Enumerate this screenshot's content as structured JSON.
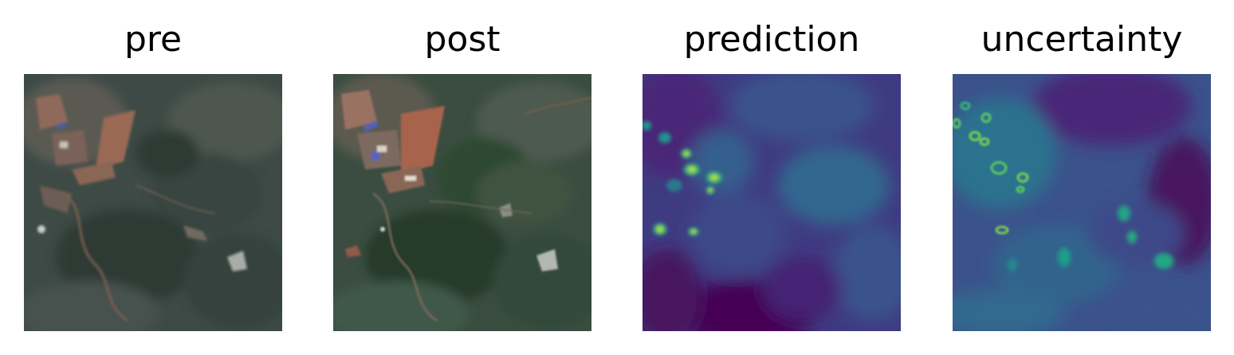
{
  "figure": {
    "panels": [
      {
        "title": "pre",
        "kind": "satellite-rgb",
        "palette": {
          "base": "#3d4a45",
          "dark": "#2c3833",
          "light": "#5a625c",
          "soil": "#9a6a55",
          "roof": "#4a5f9a",
          "bright": "#c8cfcf"
        }
      },
      {
        "title": "post",
        "kind": "satellite-rgb",
        "palette": {
          "base": "#3a4d40",
          "dark": "#243628",
          "light": "#5d6a5e",
          "soil": "#a8644e",
          "roof": "#5062b8",
          "bright": "#d2d6d4"
        }
      },
      {
        "title": "prediction",
        "kind": "heatmap",
        "colormap": "viridis",
        "palette": {
          "low": "#440154",
          "mid": "#3b528b",
          "midhigh": "#21918c",
          "high": "#5ec962",
          "max": "#fde725"
        }
      },
      {
        "title": "uncertainty",
        "kind": "heatmap",
        "colormap": "viridis",
        "palette": {
          "low": "#440154",
          "mid": "#3b528b",
          "midhigh": "#21918c",
          "high": "#5ec962",
          "max": "#fde725"
        }
      }
    ]
  }
}
